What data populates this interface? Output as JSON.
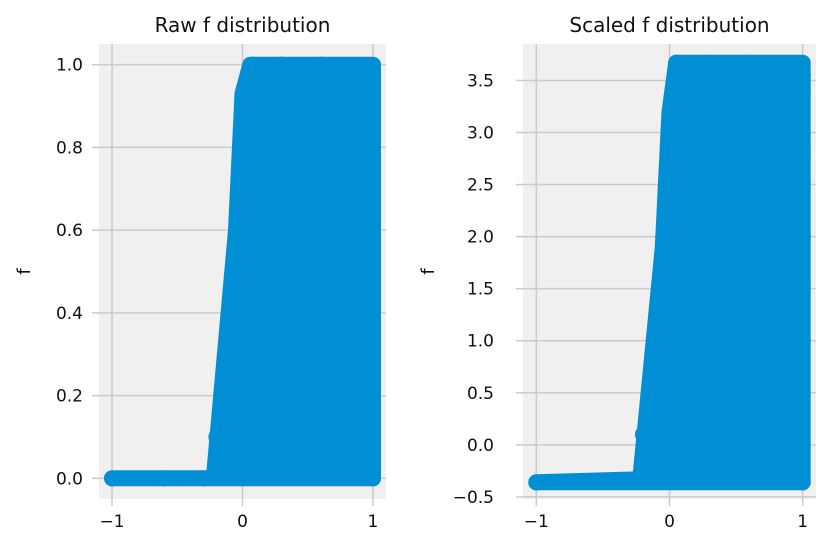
{
  "chart_data": [
    {
      "type": "scatter",
      "title": "Raw f distribution",
      "xlabel": "",
      "ylabel": "f",
      "xlim": [
        -1.1,
        1.1
      ],
      "ylim": [
        -0.05,
        1.05
      ],
      "xticks": [
        -1,
        0,
        1
      ],
      "yticks": [
        0.0,
        0.2,
        0.4,
        0.6,
        0.8,
        1.0
      ],
      "xtick_labels": [
        "−1",
        "0",
        "1"
      ],
      "ytick_labels": [
        "0.0",
        "0.2",
        "0.4",
        "0.6",
        "0.8",
        "1.0"
      ],
      "grid": true,
      "color": "#008FD5",
      "series": [
        {
          "outline": [
            [
              -1.0,
              0.0
            ],
            [
              -0.22,
              0.0
            ],
            [
              -0.05,
              0.6
            ],
            [
              0.0,
              0.93
            ],
            [
              0.06,
              1.0
            ],
            [
              1.0,
              1.0
            ],
            [
              1.0,
              0.0
            ]
          ],
          "x": [
            -1.0,
            -0.6,
            -0.3,
            -0.2,
            -0.1,
            0.0,
            0.08,
            0.3,
            0.6,
            1.0,
            1.0,
            1.0,
            1.0,
            1.0,
            1.0
          ],
          "y": [
            0.0,
            0.0,
            0.0,
            0.1,
            0.4,
            0.8,
            1.0,
            1.0,
            1.0,
            0.89,
            0.95,
            0.78,
            0.6,
            0.4,
            0.0
          ]
        }
      ]
    },
    {
      "type": "scatter",
      "title": "Scaled f distribution",
      "xlabel": "",
      "ylabel": "f",
      "xlim": [
        -1.1,
        1.1
      ],
      "ylim": [
        -0.52,
        3.85
      ],
      "xticks": [
        -1,
        0,
        1
      ],
      "yticks": [
        -0.5,
        0.0,
        0.5,
        1.0,
        1.5,
        2.0,
        2.5,
        3.0,
        3.5
      ],
      "xtick_labels": [
        "−1",
        "0",
        "1"
      ],
      "ytick_labels": [
        "−0.5",
        "0.0",
        "0.5",
        "1.0",
        "1.5",
        "2.0",
        "2.5",
        "3.0",
        "3.5"
      ],
      "grid": true,
      "color": "#008FD5",
      "series": [
        {
          "outline": [
            [
              -1.0,
              -0.36
            ],
            [
              -0.22,
              -0.33
            ],
            [
              -0.05,
              1.9
            ],
            [
              0.0,
              3.2
            ],
            [
              0.05,
              3.67
            ],
            [
              1.0,
              3.67
            ],
            [
              1.0,
              -0.36
            ]
          ],
          "x": [
            -1.0,
            -0.6,
            -0.3,
            -0.2,
            -0.1,
            0.0,
            0.05,
            0.3,
            0.6,
            1.0,
            1.0,
            1.0,
            1.0,
            1.0,
            1.0
          ],
          "y": [
            -0.36,
            -0.35,
            -0.34,
            0.1,
            1.1,
            2.6,
            3.67,
            3.67,
            3.67,
            3.38,
            3.55,
            2.8,
            2.0,
            1.0,
            -0.36
          ]
        }
      ]
    }
  ]
}
